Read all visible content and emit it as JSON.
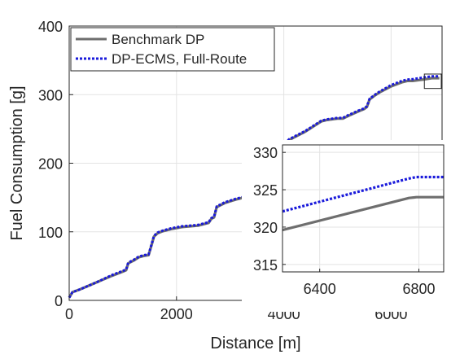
{
  "chart_data": [
    {
      "type": "line",
      "title": "",
      "xlabel": "Distance [m]",
      "ylabel": "Fuel Consumption [g]",
      "xlim": [
        0,
        6950
      ],
      "ylim": [
        0,
        400
      ],
      "xticks": [
        0,
        2000,
        4000,
        6000
      ],
      "xtick_labels": [
        "0",
        "2000",
        "4000",
        "6000"
      ],
      "yticks": [
        0,
        100,
        200,
        300,
        400
      ],
      "ytick_labels": [
        "0",
        "100",
        "200",
        "300",
        "400"
      ],
      "grid": true,
      "legend_position": "top-left",
      "series": [
        {
          "name": "Benchmark DP",
          "color": "#6e6e6e",
          "style": "solid",
          "x": [
            0,
            60,
            200,
            500,
            800,
            1000,
            1060,
            1100,
            1200,
            1300,
            1400,
            1480,
            1540,
            1580,
            1650,
            1750,
            1900,
            2100,
            2250,
            2400,
            2600,
            2650,
            2700,
            2750,
            2900,
            3100,
            3300,
            3360,
            3420,
            3500,
            3600,
            3650,
            3700,
            3800,
            3950,
            4100,
            4200,
            4400,
            4600,
            4700,
            4800,
            5000,
            5100,
            5200,
            5400,
            5500,
            5550,
            5600,
            5700,
            5800,
            6000,
            6200,
            6300,
            6400,
            6600,
            6760,
            6900
          ],
          "values": [
            4,
            12,
            16,
            26,
            36,
            42,
            44,
            54,
            58,
            63,
            65,
            66,
            82,
            93,
            98,
            101,
            104,
            107,
            108,
            109,
            113,
            119,
            121,
            136,
            142,
            147,
            151,
            152,
            159,
            165,
            170,
            171,
            179,
            203,
            222,
            234,
            238,
            246,
            256,
            261,
            263,
            265,
            265,
            269,
            276,
            279,
            282,
            293,
            299,
            304,
            312,
            318,
            320,
            320,
            322,
            324,
            324
          ]
        },
        {
          "name": "DP-ECMS, Full-Route",
          "color": "#1a1adb",
          "style": "dotted",
          "x": [
            0,
            60,
            200,
            500,
            800,
            1000,
            1060,
            1100,
            1200,
            1300,
            1400,
            1480,
            1540,
            1580,
            1650,
            1750,
            1900,
            2100,
            2250,
            2400,
            2600,
            2650,
            2700,
            2750,
            2900,
            3100,
            3300,
            3360,
            3420,
            3500,
            3600,
            3650,
            3700,
            3800,
            3950,
            4100,
            4200,
            4400,
            4600,
            4700,
            4800,
            5000,
            5100,
            5200,
            5400,
            5500,
            5550,
            5600,
            5700,
            5800,
            6000,
            6200,
            6300,
            6400,
            6600,
            6760,
            6900
          ],
          "values": [
            4,
            12,
            16,
            26,
            37,
            43,
            45,
            55,
            59,
            64,
            66,
            67,
            83,
            94,
            99,
            102,
            105,
            108,
            109,
            110,
            114,
            120,
            122,
            137,
            143,
            148,
            152,
            153,
            160,
            166,
            171,
            172,
            180,
            204,
            223,
            235,
            239,
            247,
            257,
            262,
            264,
            266,
            266,
            270,
            277,
            280,
            283,
            294,
            300,
            305,
            314,
            320,
            322,
            322.5,
            325,
            326.7,
            326.7
          ]
        }
      ]
    },
    {
      "type": "line",
      "title": "",
      "xlabel": "",
      "ylabel": "",
      "xlim": [
        6250,
        6900
      ],
      "ylim": [
        314,
        331
      ],
      "xticks": [
        6400,
        6800
      ],
      "xtick_labels": [
        "6400",
        "6800"
      ],
      "yticks": [
        315,
        320,
        325,
        330
      ],
      "ytick_labels": [
        "315",
        "320",
        "325",
        "330"
      ],
      "grid": true,
      "series": [
        {
          "color": "#6e6e6e",
          "style": "solid",
          "x": [
            6250,
            6760,
            6790,
            6900
          ],
          "values": [
            319.6,
            323.9,
            324.0,
            324.0
          ]
        },
        {
          "color": "#1a1adb",
          "style": "dotted",
          "x": [
            6250,
            6760,
            6790,
            6900
          ],
          "values": [
            322.1,
            326.5,
            326.7,
            326.7
          ]
        }
      ]
    }
  ]
}
